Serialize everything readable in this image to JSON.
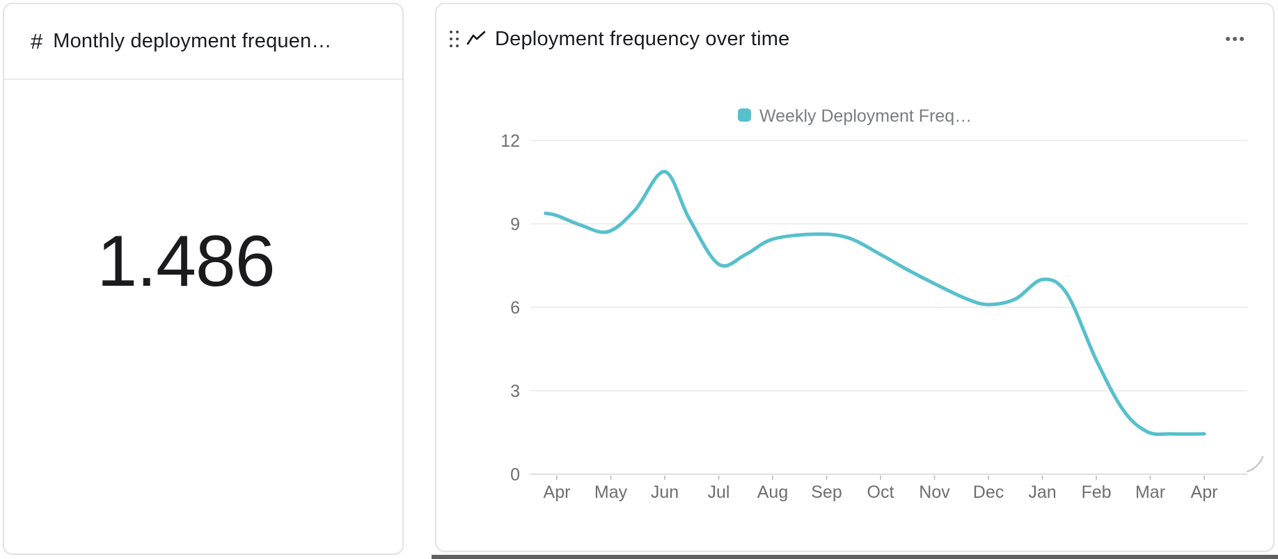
{
  "metric_card": {
    "icon_glyph": "#",
    "title": "Monthly deployment frequen…",
    "value": "1.486"
  },
  "chart_card": {
    "title": "Deployment frequency over time"
  },
  "chart_data": {
    "type": "line",
    "title": "Deployment frequency over time",
    "series_name": "Weekly Deployment Freq…",
    "categories": [
      "Apr",
      "May",
      "Jun",
      "Jul",
      "Aug",
      "Sep",
      "Oct",
      "Nov",
      "Dec",
      "Jan",
      "Feb",
      "Mar",
      "Apr"
    ],
    "values_at_months": [
      9.3,
      8.7,
      10.9,
      7.6,
      8.5,
      8.6,
      7.9,
      6.9,
      6.1,
      7.0,
      4.1,
      1.5,
      1.5
    ],
    "samples": [
      [
        -0.21,
        9.38
      ],
      [
        0.0,
        9.3
      ],
      [
        0.45,
        8.95
      ],
      [
        0.95,
        8.72
      ],
      [
        1.45,
        9.5
      ],
      [
        2.0,
        10.88
      ],
      [
        2.45,
        9.2
      ],
      [
        3.0,
        7.55
      ],
      [
        3.5,
        7.9
      ],
      [
        4.0,
        8.45
      ],
      [
        4.8,
        8.63
      ],
      [
        5.4,
        8.5
      ],
      [
        6.0,
        7.9
      ],
      [
        6.5,
        7.35
      ],
      [
        7.0,
        6.85
      ],
      [
        7.6,
        6.3
      ],
      [
        8.0,
        6.1
      ],
      [
        8.5,
        6.3
      ],
      [
        9.0,
        7.0
      ],
      [
        9.45,
        6.5
      ],
      [
        10.0,
        4.1
      ],
      [
        10.5,
        2.3
      ],
      [
        10.95,
        1.52
      ],
      [
        11.4,
        1.45
      ],
      [
        12.0,
        1.45
      ]
    ],
    "y_ticks": [
      0,
      3,
      6,
      9,
      12
    ],
    "ylim": [
      0,
      12
    ],
    "grid": true,
    "legend_position": "top",
    "line_color": "#56c0cb",
    "axis_label_color": "#6e6e6e",
    "legend_text_color": "#7a7d80",
    "grid_color": "#eeeeee",
    "zero_line_color": "#dedede",
    "tick_color": "#c6c6c6"
  }
}
